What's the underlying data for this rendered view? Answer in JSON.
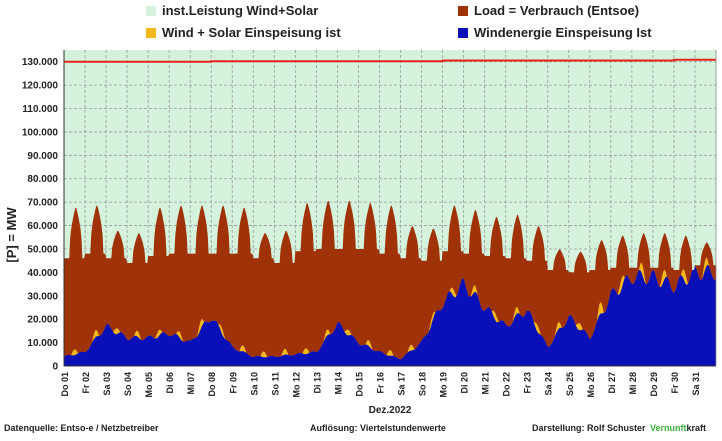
{
  "legend": {
    "installed": "inst.Leistung Wind+Solar",
    "load": "Load =  Verbrauch (Entsoe)",
    "wind_solar": "Wind + Solar Einspeisung ist",
    "wind": "Windenergie Einspeisung Ist"
  },
  "colors": {
    "installed_fill": "#d4f2dc",
    "installed_line": "#e8231e",
    "load": "#a03207",
    "wind_solar": "#f5b81c",
    "wind": "#0a10b8",
    "grid": "#9a9a9a"
  },
  "chart_data": {
    "type": "area",
    "ylabel": "[P] = MW",
    "xlabel": "Dez.2022",
    "ylim": [
      0,
      135000
    ],
    "yticks": [
      "0",
      "10.000",
      "20.000",
      "30.000",
      "40.000",
      "50.000",
      "60.000",
      "70.000",
      "80.000",
      "90.000",
      "100.000",
      "110.000",
      "120.000",
      "130.000"
    ],
    "grid": true,
    "legend_position": "top",
    "x_labels": [
      "Do 01",
      "Fr 02",
      "Sa 03",
      "So 04",
      "Mo 05",
      "Di 06",
      "Mi 07",
      "Do 08",
      "Fr 09",
      "Sa 10",
      "So 11",
      "Mo 12",
      "Di 13",
      "Mi 14",
      "Do 15",
      "Fr 16",
      "Sa 17",
      "So 18",
      "Mo 19",
      "Di 20",
      "Mi 21",
      "Do 22",
      "Fr 23",
      "Sa 24",
      "So 25",
      "Mo 26",
      "Di 27",
      "Mi 28",
      "Do 29",
      "Fr 30",
      "Sa 31"
    ],
    "series": [
      {
        "name": "inst.Leistung Wind+Solar",
        "values": [
          130000,
          130000,
          130000,
          130000,
          130000,
          130000,
          130000,
          130200,
          130200,
          130200,
          130200,
          130200,
          130200,
          130200,
          130200,
          130200,
          130200,
          130200,
          130500,
          130500,
          130500,
          130500,
          130500,
          130500,
          130500,
          130500,
          130500,
          130500,
          130500,
          130800,
          130800
        ]
      },
      {
        "name": "Load =  Verbrauch (Entsoe)",
        "day_peaks": [
          68000,
          69000,
          58000,
          57000,
          68000,
          69000,
          69000,
          69000,
          68000,
          57000,
          58000,
          70000,
          71000,
          71000,
          70000,
          69000,
          60000,
          59000,
          69000,
          67000,
          64000,
          65000,
          60000,
          50000,
          49000,
          54000,
          56000,
          57000,
          57000,
          56000,
          53000
        ],
        "day_troughs": [
          46000,
          48000,
          46000,
          44000,
          47000,
          48000,
          48000,
          48000,
          48000,
          46000,
          44000,
          49000,
          50000,
          50000,
          50000,
          48000,
          46000,
          45000,
          49000,
          48000,
          47000,
          46000,
          45000,
          41000,
          40000,
          41000,
          42000,
          42000,
          42000,
          41000,
          43000
        ]
      },
      {
        "name": "Wind + Solar Einspeisung ist",
        "day_solar_peaks": [
          2500,
          3000,
          2500,
          2500,
          2500,
          2500,
          3500,
          2500,
          2500,
          2500,
          2500,
          2500,
          2500,
          2500,
          2500,
          2500,
          2500,
          2500,
          3000,
          3000,
          3000,
          3000,
          3000,
          3000,
          3000,
          5000,
          4500,
          4500,
          4500,
          4500,
          4000
        ]
      },
      {
        "name": "Windenergie Einspeisung Ist",
        "day_values": [
          4000,
          6000,
          17000,
          12000,
          12000,
          14000,
          10000,
          21000,
          8000,
          4000,
          4000,
          5000,
          6000,
          18000,
          10000,
          6000,
          3000,
          10000,
          27000,
          35000,
          25000,
          17000,
          24000,
          8000,
          21000,
          12000,
          30000,
          38000,
          38000,
          34000,
          40000
        ]
      }
    ]
  },
  "footer": {
    "source": "Datenquelle:  Entso-e  / Netzbetreiber",
    "resolution": "Auflösung: Viertelstundenwerte",
    "author": "Darstellung:  Rolf Schuster",
    "brand_green": "Vernunft",
    "brand_black": "kraft"
  }
}
